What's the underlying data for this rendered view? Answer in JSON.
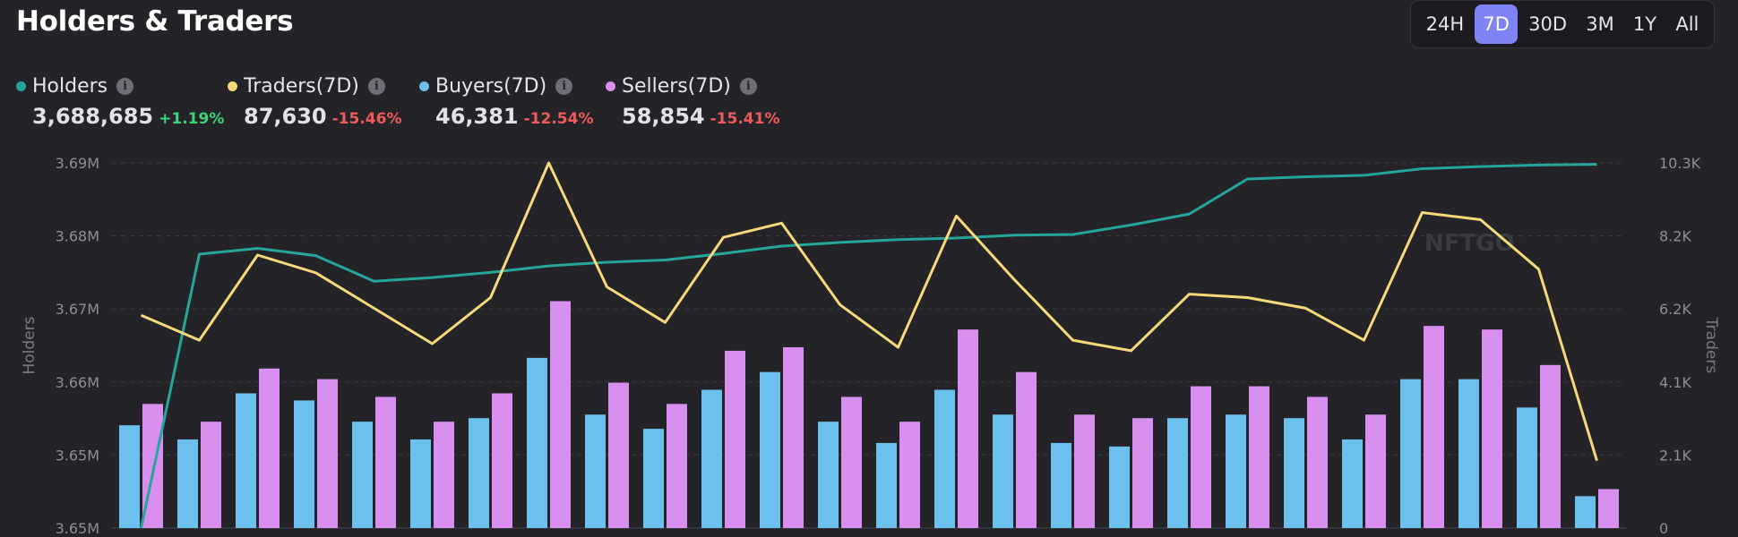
{
  "title": "Holders & Traders",
  "ranges": [
    "24H",
    "7D",
    "30D",
    "3M",
    "1Y",
    "All"
  ],
  "active_range": "7D",
  "stats": [
    {
      "label": "Holders",
      "value": "3,688,685",
      "change": "+1.19%",
      "color": "#26a69a",
      "trend": "pos"
    },
    {
      "label": "Traders(7D)",
      "value": "87,630",
      "change": "-15.46%",
      "color": "#f5d97a",
      "trend": "neg"
    },
    {
      "label": "Buyers(7D)",
      "value": "46,381",
      "change": "-12.54%",
      "color": "#6cc0ee",
      "trend": "neg"
    },
    {
      "label": "Sellers(7D)",
      "value": "58,854",
      "change": "-15.41%",
      "color": "#d98ff0",
      "trend": "neg"
    }
  ],
  "watermark": "NFTGO",
  "chart_data": {
    "type": "bar+line",
    "ylabel_left": "Holders",
    "ylabel_right": "Traders",
    "left_ticks": [
      "3.65M",
      "3.65M",
      "3.66M",
      "3.67M",
      "3.68M",
      "3.69M"
    ],
    "right_ticks": [
      "0",
      "2.1K",
      "4.1K",
      "6.2K",
      "8.2K",
      "10.3K"
    ],
    "left_range": [
      3640000,
      3690000
    ],
    "right_range": [
      0,
      10300
    ],
    "grid": true,
    "colors": {
      "holders": "#26a69a",
      "traders": "#f5d97a",
      "buyers": "#6cc0ee",
      "sellers": "#d98ff0"
    },
    "series": [
      {
        "name": "Holders",
        "axis": "left",
        "kind": "line",
        "values": [
          3640000,
          3677500,
          3678300,
          3677300,
          3673800,
          3674300,
          3675000,
          3675900,
          3676400,
          3676700,
          3677600,
          3678600,
          3679100,
          3679500,
          3679700,
          3680100,
          3680200,
          3681500,
          3683000,
          3687800,
          3688100,
          3688300,
          3689200,
          3689500,
          3689700,
          3689800
        ]
      },
      {
        "name": "Traders(7D)",
        "axis": "right",
        "kind": "line",
        "values": [
          6000,
          5300,
          7700,
          7200,
          6200,
          5200,
          6500,
          10300,
          6800,
          5800,
          8200,
          8600,
          6300,
          5100,
          8800,
          7000,
          5300,
          5000,
          6600,
          6500,
          6200,
          5300,
          8900,
          8700,
          7300,
          1900
        ]
      },
      {
        "name": "Buyers(7D)",
        "axis": "right",
        "kind": "bar",
        "values": [
          2900,
          2500,
          3800,
          3600,
          3000,
          2500,
          3100,
          4800,
          3200,
          2800,
          3900,
          4400,
          3000,
          2400,
          3900,
          3200,
          2400,
          2300,
          3100,
          3200,
          3100,
          2500,
          4200,
          4200,
          3400,
          900
        ]
      },
      {
        "name": "Sellers(7D)",
        "axis": "right",
        "kind": "bar",
        "values": [
          3500,
          3000,
          4500,
          4200,
          3700,
          3000,
          3800,
          6400,
          4100,
          3500,
          5000,
          5100,
          3700,
          3000,
          5600,
          4400,
          3200,
          3100,
          4000,
          4000,
          3700,
          3200,
          5700,
          5600,
          4600,
          1100
        ]
      }
    ]
  }
}
